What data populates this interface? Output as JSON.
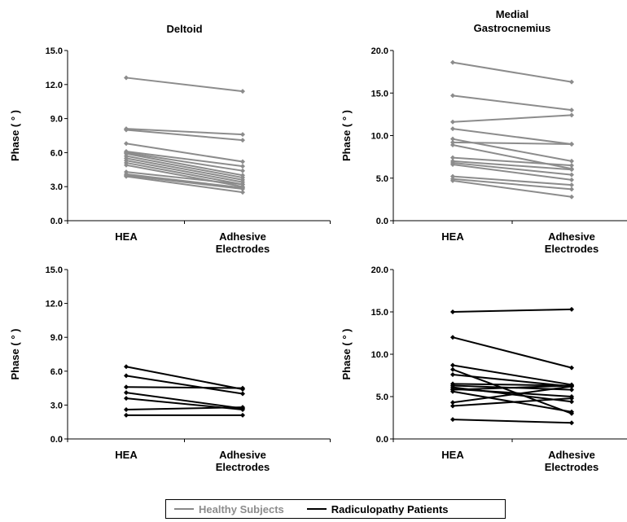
{
  "colors": {
    "healthy": "#8c8c8c",
    "radiculopathy": "#000000"
  },
  "legend": {
    "healthy": "Healthy Subjects",
    "radiculopathy": "Radiculopathy Patients"
  },
  "chart_data": [
    {
      "type": "line",
      "title_lines": [
        "Deltoid"
      ],
      "ylabel": "Phase ( ° )",
      "categories": [
        "HEA",
        "Adhesive\nElectrodes"
      ],
      "ylim": [
        0,
        15
      ],
      "yticks": [
        "0.0",
        "3.0",
        "6.0",
        "9.0",
        "12.0",
        "15.0"
      ],
      "group": "healthy",
      "series": [
        {
          "values": [
            12.6,
            11.4
          ]
        },
        {
          "values": [
            8.1,
            7.6
          ]
        },
        {
          "values": [
            8.0,
            7.1
          ]
        },
        {
          "values": [
            6.8,
            5.2
          ]
        },
        {
          "values": [
            6.1,
            4.8
          ]
        },
        {
          "values": [
            6.0,
            4.4
          ]
        },
        {
          "values": [
            5.9,
            4.0
          ]
        },
        {
          "values": [
            5.7,
            3.8
          ]
        },
        {
          "values": [
            5.5,
            3.6
          ]
        },
        {
          "values": [
            5.3,
            3.4
          ]
        },
        {
          "values": [
            5.1,
            3.2
          ]
        },
        {
          "values": [
            4.9,
            3.0
          ]
        },
        {
          "values": [
            4.3,
            3.2
          ]
        },
        {
          "values": [
            4.1,
            2.9
          ]
        },
        {
          "values": [
            4.0,
            2.8
          ]
        },
        {
          "values": [
            3.9,
            2.5
          ]
        }
      ]
    },
    {
      "type": "line",
      "title_lines": [
        "Medial",
        "Gastrocnemius"
      ],
      "ylabel": "Phase ( ° )",
      "categories": [
        "HEA",
        "Adhesive\nElectrodes"
      ],
      "ylim": [
        0,
        20
      ],
      "yticks": [
        "0.0",
        "5.0",
        "10.0",
        "15.0",
        "20.0"
      ],
      "group": "healthy",
      "series": [
        {
          "values": [
            18.6,
            16.3
          ]
        },
        {
          "values": [
            14.7,
            13.0
          ]
        },
        {
          "values": [
            11.6,
            12.4
          ]
        },
        {
          "values": [
            10.8,
            9.0
          ]
        },
        {
          "values": [
            9.6,
            7.0
          ]
        },
        {
          "values": [
            9.2,
            9.0
          ]
        },
        {
          "values": [
            8.9,
            6.1
          ]
        },
        {
          "values": [
            7.4,
            6.5
          ]
        },
        {
          "values": [
            7.0,
            6.0
          ]
        },
        {
          "values": [
            6.8,
            5.4
          ]
        },
        {
          "values": [
            6.6,
            4.8
          ]
        },
        {
          "values": [
            5.2,
            4.2
          ]
        },
        {
          "values": [
            4.9,
            3.7
          ]
        },
        {
          "values": [
            4.7,
            2.8
          ]
        }
      ]
    },
    {
      "type": "line",
      "title_lines": [],
      "ylabel": "Phase ( ° )",
      "categories": [
        "HEA",
        "Adhesive\nElectrodes"
      ],
      "ylim": [
        0,
        15
      ],
      "yticks": [
        "0.0",
        "3.0",
        "6.0",
        "9.0",
        "12.0",
        "15.0"
      ],
      "group": "radiculopathy",
      "series": [
        {
          "values": [
            6.4,
            4.4
          ]
        },
        {
          "values": [
            5.6,
            4.0
          ]
        },
        {
          "values": [
            4.6,
            4.5
          ]
        },
        {
          "values": [
            4.1,
            2.7
          ]
        },
        {
          "values": [
            3.6,
            2.6
          ]
        },
        {
          "values": [
            2.6,
            2.8
          ]
        },
        {
          "values": [
            2.1,
            2.1
          ]
        }
      ]
    },
    {
      "type": "line",
      "title_lines": [],
      "ylabel": "Phase ( ° )",
      "categories": [
        "HEA",
        "Adhesive\nElectrodes"
      ],
      "ylim": [
        0,
        20
      ],
      "yticks": [
        "0.0",
        "5.0",
        "10.0",
        "15.0",
        "20.0"
      ],
      "group": "radiculopathy",
      "series": [
        {
          "values": [
            15.0,
            15.3
          ]
        },
        {
          "values": [
            12.0,
            8.4
          ]
        },
        {
          "values": [
            8.7,
            6.4
          ]
        },
        {
          "values": [
            8.2,
            3.0
          ]
        },
        {
          "values": [
            7.6,
            6.2
          ]
        },
        {
          "values": [
            6.5,
            6.3
          ]
        },
        {
          "values": [
            6.3,
            5.8
          ]
        },
        {
          "values": [
            6.1,
            4.4
          ]
        },
        {
          "values": [
            5.9,
            5.0
          ]
        },
        {
          "values": [
            5.8,
            6.3
          ]
        },
        {
          "values": [
            5.6,
            3.2
          ]
        },
        {
          "values": [
            4.3,
            6.2
          ]
        },
        {
          "values": [
            3.9,
            4.8
          ]
        },
        {
          "values": [
            2.3,
            1.9
          ]
        }
      ]
    }
  ]
}
